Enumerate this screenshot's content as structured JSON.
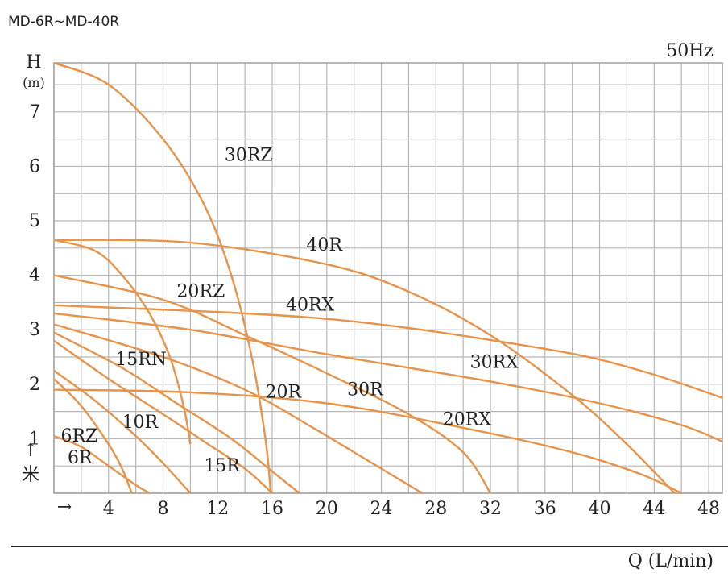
{
  "header": {
    "model_range": "MD-6R~MD-40R",
    "frequency": "50Hz"
  },
  "chart_data": {
    "type": "line",
    "title": "MD-6R~MD-40R",
    "subtitle": "50Hz",
    "xlabel": "Q (L/min)",
    "ylabel": "H",
    "ylabel_unit": "(m)",
    "ylabel_alt": "米",
    "x_arrow": "→",
    "y_arrow": "↑",
    "xlim": [
      0,
      49
    ],
    "ylim": [
      0,
      7.9
    ],
    "grid": true,
    "colors": {
      "curve": "#e8934a",
      "grid": "#b8b8b8",
      "text": "#222222"
    },
    "x_ticks": [
      {
        "value": 4,
        "label": "4"
      },
      {
        "value": 8,
        "label": "8"
      },
      {
        "value": 12,
        "label": "12"
      },
      {
        "value": 16,
        "label": "16"
      },
      {
        "value": 20,
        "label": "20"
      },
      {
        "value": 24,
        "label": "24"
      },
      {
        "value": 28,
        "label": "28"
      },
      {
        "value": 32,
        "label": "32"
      },
      {
        "value": 36,
        "label": "36"
      },
      {
        "value": 40,
        "label": "40"
      },
      {
        "value": 44,
        "label": "44"
      },
      {
        "value": 48,
        "label": "48"
      }
    ],
    "y_ticks": [
      {
        "value": 1,
        "label": "1"
      },
      {
        "value": 2,
        "label": "2"
      },
      {
        "value": 3,
        "label": "3"
      },
      {
        "value": 4,
        "label": "4"
      },
      {
        "value": 5,
        "label": "5"
      },
      {
        "value": 6,
        "label": "6"
      },
      {
        "value": 7,
        "label": "7"
      }
    ],
    "series": [
      {
        "name": "30RZ",
        "points": [
          [
            0,
            7.9
          ],
          [
            4,
            7.5
          ],
          [
            8,
            6.5
          ],
          [
            11,
            5.3
          ],
          [
            13,
            4.0
          ],
          [
            14.5,
            2.5
          ],
          [
            15.5,
            1.0
          ],
          [
            15.9,
            0
          ]
        ],
        "label_at": [
          12.5,
          6.1
        ]
      },
      {
        "name": "40R",
        "points": [
          [
            0,
            4.65
          ],
          [
            10,
            4.6
          ],
          [
            20,
            4.2
          ],
          [
            26,
            3.7
          ],
          [
            32,
            2.9
          ],
          [
            38,
            1.8
          ],
          [
            42,
            0.9
          ],
          [
            45.5,
            0
          ]
        ],
        "label_at": [
          18.5,
          4.45
        ]
      },
      {
        "name": "20RZ",
        "points": [
          [
            0,
            4.65
          ],
          [
            3,
            4.45
          ],
          [
            5,
            4.0
          ],
          [
            7,
            3.3
          ],
          [
            8.5,
            2.5
          ],
          [
            9.5,
            1.6
          ],
          [
            10,
            0.9
          ]
        ],
        "label_at": [
          9,
          3.6
        ]
      },
      {
        "name": "40RX",
        "points": [
          [
            0,
            3.45
          ],
          [
            20,
            3.2
          ],
          [
            36,
            2.65
          ],
          [
            43,
            2.25
          ],
          [
            49,
            1.75
          ]
        ],
        "label_at": [
          17,
          3.35
        ]
      },
      {
        "name": "30RX",
        "points": [
          [
            0,
            3.3
          ],
          [
            10,
            3.0
          ],
          [
            20,
            2.55
          ],
          [
            32,
            2.05
          ],
          [
            40,
            1.65
          ],
          [
            46,
            1.25
          ],
          [
            49,
            0.95
          ]
        ],
        "label_at": [
          30.5,
          2.3
        ]
      },
      {
        "name": "20RX",
        "points": [
          [
            0,
            1.9
          ],
          [
            10,
            1.85
          ],
          [
            20,
            1.65
          ],
          [
            30,
            1.2
          ],
          [
            38,
            0.75
          ],
          [
            43,
            0.35
          ],
          [
            46,
            0
          ]
        ],
        "label_at": [
          28.5,
          1.25
        ]
      },
      {
        "name": "30R",
        "points": [
          [
            0,
            4.0
          ],
          [
            8,
            3.55
          ],
          [
            14,
            2.9
          ],
          [
            20,
            2.2
          ],
          [
            26,
            1.45
          ],
          [
            30,
            0.75
          ],
          [
            32,
            0
          ]
        ],
        "label_at": [
          21.5,
          1.8
        ]
      },
      {
        "name": "20R",
        "points": [
          [
            0,
            3.1
          ],
          [
            8,
            2.5
          ],
          [
            14,
            1.9
          ],
          [
            19,
            1.2
          ],
          [
            23,
            0.6
          ],
          [
            27,
            0
          ]
        ],
        "label_at": [
          15.5,
          1.75
        ]
      },
      {
        "name": "15RN",
        "points": [
          [
            0,
            2.95
          ],
          [
            5,
            2.3
          ],
          [
            9,
            1.65
          ],
          [
            13,
            1.0
          ],
          [
            16,
            0.4
          ],
          [
            18,
            0
          ]
        ],
        "label_at": [
          4.5,
          2.35
        ]
      },
      {
        "name": "15R",
        "points": [
          [
            0,
            2.8
          ],
          [
            4,
            2.1
          ],
          [
            8,
            1.45
          ],
          [
            11,
            0.95
          ],
          [
            14,
            0.45
          ],
          [
            16,
            0
          ]
        ],
        "label_at": [
          11,
          0.4
        ]
      },
      {
        "name": "10R",
        "points": [
          [
            0,
            2.25
          ],
          [
            3,
            1.7
          ],
          [
            6,
            1.05
          ],
          [
            8,
            0.55
          ],
          [
            10,
            0
          ]
        ],
        "label_at": [
          5,
          1.2
        ]
      },
      {
        "name": "6RZ",
        "points": [
          [
            0,
            2.1
          ],
          [
            2,
            1.6
          ],
          [
            4,
            0.9
          ],
          [
            5,
            0.45
          ],
          [
            5.7,
            0
          ]
        ],
        "label_at": [
          0.5,
          0.95
        ]
      },
      {
        "name": "6R",
        "points": [
          [
            0,
            1.05
          ],
          [
            2,
            0.85
          ],
          [
            4,
            0.5
          ],
          [
            6,
            0.15
          ],
          [
            7,
            0
          ]
        ],
        "label_at": [
          1,
          0.55
        ]
      }
    ]
  }
}
